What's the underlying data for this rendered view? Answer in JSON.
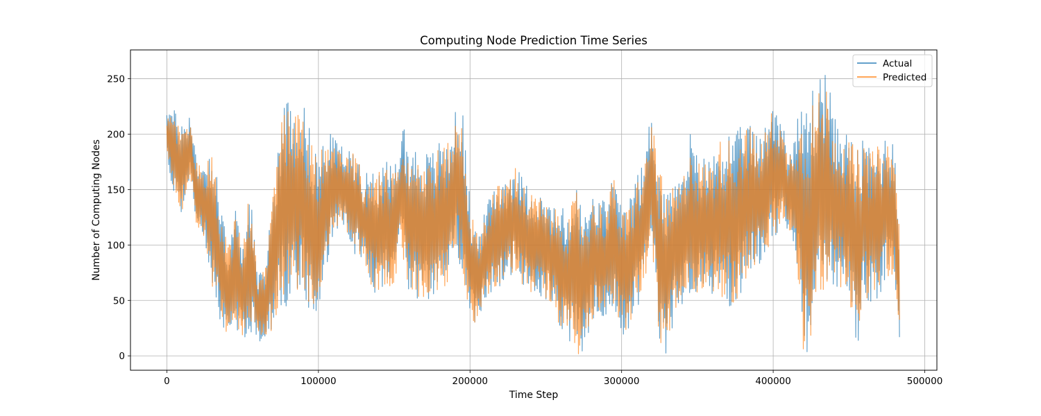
{
  "chart_data": {
    "type": "line",
    "title": "Computing Node Prediction Time Series",
    "xlabel": "Time Step",
    "ylabel": "Number of Computing Nodes",
    "xlim": [
      -24000,
      508000
    ],
    "ylim": [
      -13,
      276
    ],
    "xticks": [
      0,
      100000,
      200000,
      300000,
      400000,
      500000
    ],
    "xtick_labels": [
      "0",
      "100000",
      "200000",
      "300000",
      "400000",
      "500000"
    ],
    "yticks": [
      0,
      50,
      100,
      150,
      200,
      250
    ],
    "ytick_labels": [
      "0",
      "50",
      "100",
      "150",
      "200",
      "250"
    ],
    "grid": true,
    "legend_position": "upper right",
    "colors": {
      "actual": "#1f77b4",
      "predicted": "#ff7f0e"
    },
    "x_range_of_data": [
      0,
      483500
    ],
    "series": [
      {
        "name": "Actual",
        "x": [
          0,
          5000,
          10000,
          15000,
          20000,
          25000,
          30000,
          35000,
          40000,
          45000,
          50000,
          55000,
          60000,
          65000,
          70000,
          75000,
          80000,
          85000,
          90000,
          95000,
          100000,
          105000,
          110000,
          115000,
          120000,
          125000,
          130000,
          135000,
          140000,
          145000,
          150000,
          155000,
          160000,
          165000,
          170000,
          175000,
          180000,
          185000,
          190000,
          195000,
          200000,
          205000,
          210000,
          215000,
          220000,
          225000,
          230000,
          235000,
          240000,
          245000,
          250000,
          255000,
          260000,
          265000,
          270000,
          275000,
          280000,
          285000,
          290000,
          295000,
          300000,
          305000,
          310000,
          315000,
          320000,
          325000,
          330000,
          335000,
          340000,
          345000,
          350000,
          355000,
          360000,
          365000,
          370000,
          375000,
          380000,
          385000,
          390000,
          395000,
          400000,
          405000,
          410000,
          415000,
          420000,
          425000,
          430000,
          435000,
          440000,
          445000,
          450000,
          455000,
          460000,
          465000,
          470000,
          475000,
          480000,
          483500
        ],
        "upper": [
          230,
          222,
          212,
          220,
          180,
          175,
          190,
          145,
          100,
          138,
          95,
          160,
          70,
          85,
          150,
          220,
          238,
          230,
          232,
          200,
          185,
          200,
          200,
          190,
          185,
          190,
          160,
          175,
          170,
          175,
          168,
          218,
          190,
          190,
          185,
          185,
          195,
          195,
          220,
          225,
          140,
          110,
          130,
          155,
          160,
          165,
          175,
          160,
          150,
          150,
          140,
          135,
          135,
          130,
          155,
          130,
          145,
          145,
          140,
          170,
          130,
          140,
          165,
          175,
          232,
          175,
          145,
          160,
          160,
          205,
          180,
          180,
          180,
          200,
          205,
          200,
          210,
          215,
          195,
          210,
          240,
          220,
          185,
          210,
          230,
          245,
          250,
          268,
          215,
          210,
          200,
          190,
          195,
          190,
          195,
          200,
          200,
          120
        ],
        "lower": [
          175,
          140,
          125,
          160,
          110,
          105,
          60,
          20,
          18,
          20,
          15,
          20,
          12,
          15,
          20,
          40,
          45,
          55,
          60,
          35,
          40,
          75,
          110,
          120,
          100,
          90,
          85,
          55,
          55,
          60,
          60,
          90,
          55,
          50,
          50,
          50,
          50,
          60,
          95,
          75,
          25,
          30,
          50,
          55,
          60,
          65,
          75,
          60,
          55,
          55,
          50,
          45,
          20,
          15,
          0,
          0,
          30,
          40,
          30,
          45,
          20,
          15,
          40,
          65,
          100,
          0,
          0,
          35,
          45,
          50,
          55,
          60,
          55,
          50,
          40,
          45,
          60,
          75,
          80,
          85,
          100,
          115,
          110,
          90,
          0,
          0,
          40,
          60,
          60,
          60,
          55,
          0,
          50,
          45,
          55,
          70,
          60,
          0
        ]
      },
      {
        "name": "Predicted",
        "x": [
          0,
          5000,
          10000,
          15000,
          20000,
          25000,
          30000,
          35000,
          40000,
          45000,
          50000,
          55000,
          60000,
          65000,
          70000,
          75000,
          80000,
          85000,
          90000,
          95000,
          100000,
          105000,
          110000,
          115000,
          120000,
          125000,
          130000,
          135000,
          140000,
          145000,
          150000,
          155000,
          160000,
          165000,
          170000,
          175000,
          180000,
          185000,
          190000,
          195000,
          200000,
          205000,
          210000,
          215000,
          220000,
          225000,
          230000,
          235000,
          240000,
          245000,
          250000,
          255000,
          260000,
          265000,
          270000,
          275000,
          280000,
          285000,
          290000,
          295000,
          300000,
          305000,
          310000,
          315000,
          320000,
          325000,
          330000,
          335000,
          340000,
          345000,
          350000,
          355000,
          360000,
          365000,
          370000,
          375000,
          380000,
          385000,
          390000,
          395000,
          400000,
          405000,
          410000,
          415000,
          420000,
          425000,
          430000,
          435000,
          440000,
          445000,
          450000,
          455000,
          460000,
          465000,
          470000,
          475000,
          480000,
          483500
        ],
        "upper": [
          218,
          214,
          205,
          212,
          175,
          170,
          185,
          140,
          98,
          135,
          92,
          155,
          68,
          82,
          145,
          212,
          225,
          218,
          220,
          195,
          180,
          195,
          196,
          186,
          180,
          185,
          156,
          170,
          166,
          170,
          164,
          210,
          185,
          186,
          180,
          180,
          190,
          190,
          212,
          215,
          136,
          108,
          128,
          150,
          156,
          162,
          172,
          156,
          146,
          146,
          136,
          132,
          132,
          126,
          150,
          127,
          140,
          140,
          136,
          165,
          127,
          136,
          160,
          170,
          220,
          170,
          140,
          156,
          156,
          198,
          176,
          176,
          176,
          195,
          198,
          194,
          204,
          210,
          190,
          205,
          225,
          210,
          180,
          205,
          220,
          232,
          238,
          246,
          208,
          204,
          196,
          186,
          190,
          185,
          190,
          195,
          185,
          122
        ],
        "lower": [
          178,
          142,
          128,
          162,
          112,
          107,
          62,
          22,
          20,
          22,
          17,
          22,
          14,
          17,
          22,
          42,
          47,
          57,
          62,
          37,
          42,
          77,
          112,
          122,
          102,
          92,
          87,
          57,
          57,
          62,
          62,
          92,
          57,
          52,
          52,
          52,
          52,
          62,
          97,
          77,
          27,
          32,
          52,
          57,
          62,
          67,
          77,
          62,
          57,
          57,
          52,
          47,
          22,
          17,
          0,
          2,
          32,
          42,
          32,
          47,
          22,
          17,
          42,
          67,
          102,
          2,
          2,
          37,
          47,
          52,
          57,
          62,
          57,
          52,
          42,
          47,
          62,
          77,
          82,
          87,
          102,
          117,
          112,
          92,
          0,
          2,
          42,
          62,
          62,
          62,
          57,
          0,
          52,
          47,
          57,
          72,
          62,
          18
        ]
      }
    ]
  }
}
